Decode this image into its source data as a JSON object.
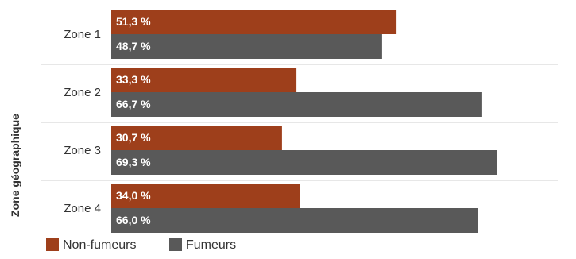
{
  "chart_data": {
    "type": "bar",
    "orientation": "horizontal",
    "ylabel": "Zone géographique",
    "categories": [
      "Zone 1",
      "Zone 2",
      "Zone 3",
      "Zone 4"
    ],
    "series": [
      {
        "name": "Non-fumeurs",
        "color": "#9E3F1B",
        "values": [
          51.3,
          33.3,
          30.7,
          34.0
        ],
        "labels": [
          "51,3 %",
          "33,3 %",
          "30,7 %",
          "34,0 %"
        ]
      },
      {
        "name": "Fumeurs",
        "color": "#595959",
        "values": [
          48.7,
          66.7,
          69.3,
          66.0
        ],
        "labels": [
          "48,7 %",
          "66,7 %",
          "69,3 %",
          "66,0 %"
        ]
      }
    ],
    "xlim": [
      0,
      100
    ],
    "grid": false,
    "legend": "bottom-left"
  }
}
